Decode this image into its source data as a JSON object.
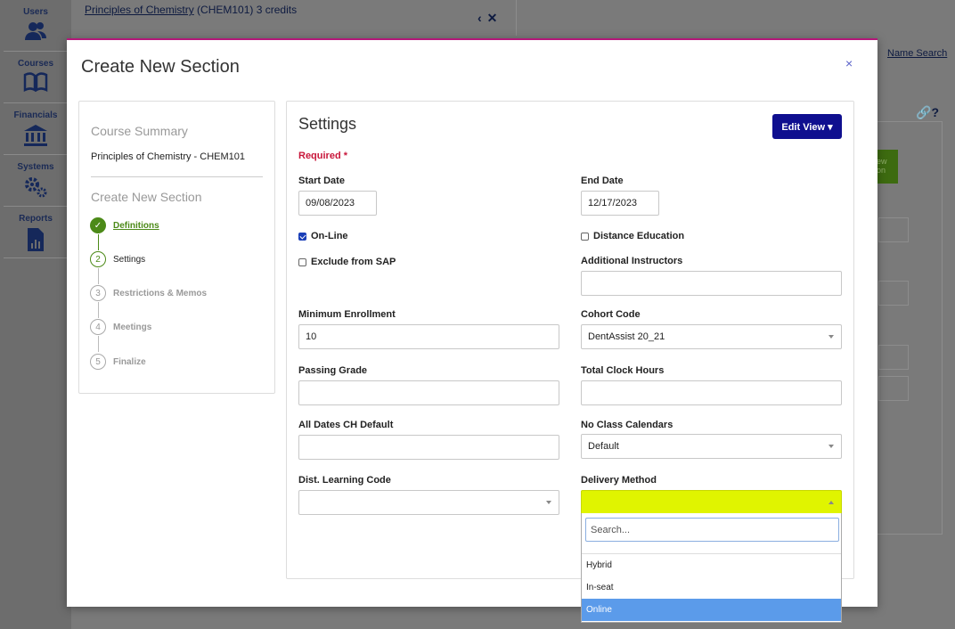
{
  "nav": {
    "users": "Users",
    "courses": "Courses",
    "financials": "Financials",
    "systems": "Systems",
    "reports": "Reports"
  },
  "background": {
    "course_link": "Principles of Chemistry",
    "course_rest": " (CHEM101) 3 credits",
    "name_search": "Name Search",
    "green_btn_text": "ew on"
  },
  "modal": {
    "title": "Create New Section",
    "close": "×"
  },
  "summary": {
    "heading": "Course Summary",
    "course": "Principles of Chemistry - CHEM101",
    "steps_heading": "Create New Section",
    "steps": [
      {
        "num": "✓",
        "label": "Definitions",
        "state": "done"
      },
      {
        "num": "2",
        "label": "Settings",
        "state": "current"
      },
      {
        "num": "3",
        "label": "Restrictions & Memos",
        "state": "pending"
      },
      {
        "num": "4",
        "label": "Meetings",
        "state": "pending"
      },
      {
        "num": "5",
        "label": "Finalize",
        "state": "pending"
      }
    ]
  },
  "settings": {
    "title": "Settings",
    "edit_view": "Edit View ▾",
    "required": "Required *",
    "start_date_label": "Start Date",
    "start_date": "09/08/2023",
    "end_date_label": "End Date",
    "end_date": "12/17/2023",
    "online_label": "On-Line",
    "distance_label": "Distance Education",
    "exclude_sap_label": "Exclude from SAP",
    "additional_instructors_label": "Additional Instructors",
    "additional_instructors": "",
    "min_enrollment_label": "Minimum Enrollment",
    "min_enrollment": "10",
    "cohort_code_label": "Cohort Code",
    "cohort_code": "DentAssist 20_21",
    "passing_grade_label": "Passing Grade",
    "passing_grade": "",
    "total_clock_hours_label": "Total Clock Hours",
    "total_clock_hours": "",
    "all_dates_label": "All Dates CH Default",
    "all_dates": "",
    "no_class_label": "No Class Calendars",
    "no_class": "Default",
    "dist_learning_label": "Dist. Learning Code",
    "dist_learning": "",
    "delivery_method_label": "Delivery Method",
    "delivery_method": ""
  },
  "dropdown": {
    "search_placeholder": "Search...",
    "options": [
      "Hybrid",
      "In-seat",
      "Online"
    ],
    "highlighted": "Online"
  },
  "colors": {
    "modal_accent": "#b4177a",
    "edit_view_bg": "#0f0f8f",
    "step_green": "#4c8a18",
    "required_red": "#c8163a",
    "open_select_bg": "#e0f400",
    "highlight_blue": "#5b9bea"
  }
}
